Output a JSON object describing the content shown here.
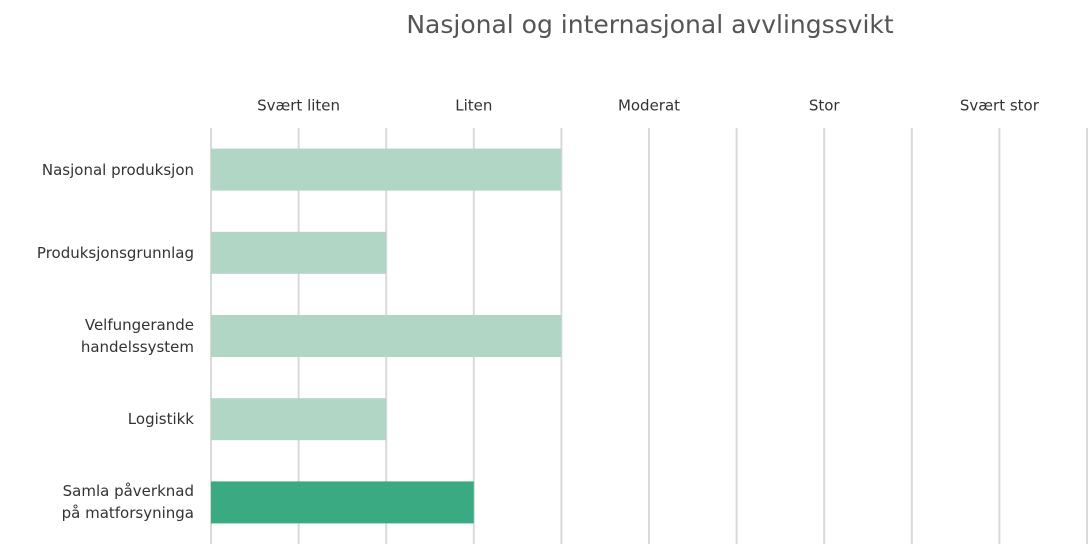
{
  "chart_data": {
    "type": "barh",
    "title": "Nasjonal og internasjonal avvlingssvikt",
    "categories": [
      "Nasjonal produksjon",
      "Produksjonsgrunnlag",
      "Velfungerande\nhandelssystem",
      "Logistikk",
      "Samla påverknad\npå matforsyninga"
    ],
    "values": [
      4,
      2,
      4,
      2,
      3
    ],
    "colors": [
      "#b1d6c5",
      "#b1d6c5",
      "#b1d6c5",
      "#b1d6c5",
      "#3aaa83"
    ],
    "xlim": [
      0,
      10
    ],
    "xticks": [
      {
        "value": 0
      },
      {
        "value": 1,
        "label": "Svært liten"
      },
      {
        "value": 2
      },
      {
        "value": 3,
        "label": "Liten"
      },
      {
        "value": 4
      },
      {
        "value": 5,
        "label": "Moderat"
      },
      {
        "value": 6
      },
      {
        "value": 7,
        "label": "Stor"
      },
      {
        "value": 8
      },
      {
        "value": 9,
        "label": "Svært stor"
      },
      {
        "value": 10
      }
    ],
    "grid": true
  }
}
